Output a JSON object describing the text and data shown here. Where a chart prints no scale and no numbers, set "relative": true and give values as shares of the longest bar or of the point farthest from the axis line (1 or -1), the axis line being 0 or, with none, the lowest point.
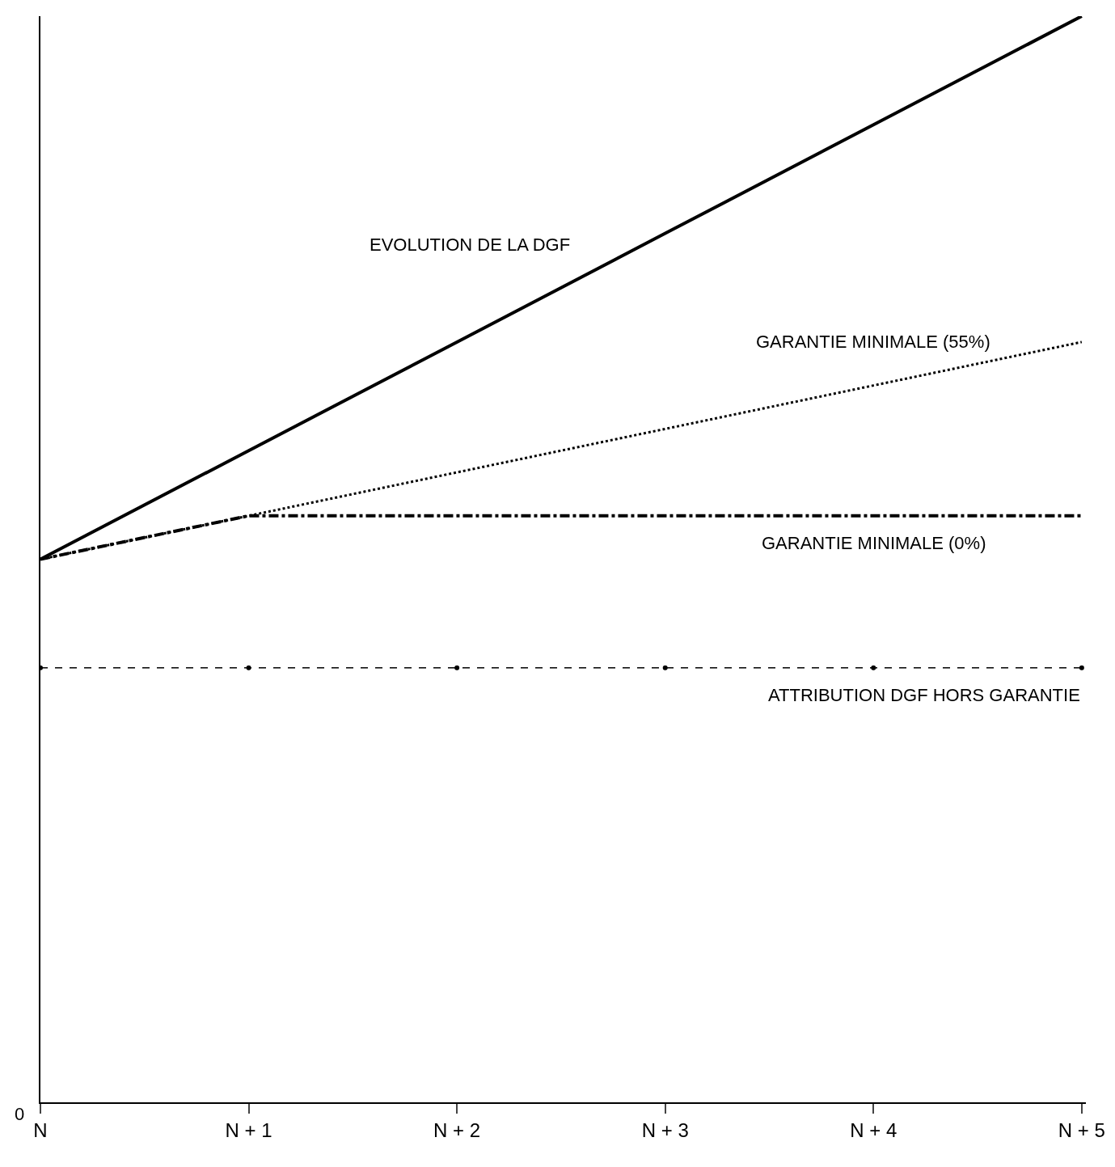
{
  "chart_data": {
    "type": "line",
    "relative": true,
    "categories": [
      "N",
      "N + 1",
      "N + 2",
      "N + 3",
      "N + 4",
      "N + 5"
    ],
    "series": [
      {
        "name": "EVOLUTION DE LA DGF",
        "color": "#000000",
        "line_style": "solid",
        "values": [
          0.5,
          0.6,
          0.7,
          0.8,
          0.9,
          1.0
        ]
      },
      {
        "name": "GARANTIE MINIMALE (55%)",
        "color": "#000000",
        "line_style": "dotted",
        "values": [
          0.5,
          0.54,
          0.58,
          0.62,
          0.66,
          0.7
        ]
      },
      {
        "name": "GARANTIE MINIMALE (0%)",
        "color": "#000000",
        "line_style": "dashdot",
        "values": [
          0.5,
          0.54,
          0.54,
          0.54,
          0.54,
          0.54
        ]
      },
      {
        "name": "ATTRIBUTION DGF HORS GARANTIE",
        "color": "#000000",
        "line_style": "dashed",
        "marker": "circle",
        "values": [
          0.4,
          0.4,
          0.4,
          0.4,
          0.4,
          0.4
        ]
      }
    ],
    "annotations": [
      "0"
    ],
    "legend": false
  }
}
